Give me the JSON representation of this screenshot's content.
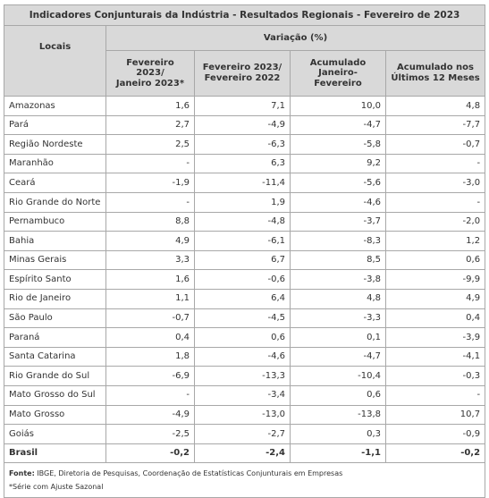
{
  "title": "Indicadores Conjunturais da Indústria  -  Resultados Regionais  -  Fevereiro de 2023",
  "header": {
    "locais": "Locais",
    "variacao": "Variação (%)",
    "columns": [
      [
        "Fevereiro 2023/",
        "Janeiro 2023*"
      ],
      [
        "Fevereiro 2023/",
        "Fevereiro 2022"
      ],
      [
        "Acumulado",
        "Janeiro-Fevereiro"
      ],
      [
        "Acumulado nos",
        "Últimos 12 Meses"
      ]
    ]
  },
  "rows": [
    {
      "local": "Amazonas",
      "v": [
        "1,6",
        "7,1",
        "10,0",
        "4,8"
      ]
    },
    {
      "local": "Pará",
      "v": [
        "2,7",
        "-4,9",
        "-4,7",
        "-7,7"
      ]
    },
    {
      "local": "Região Nordeste",
      "v": [
        "2,5",
        "-6,3",
        "-5,8",
        "-0,7"
      ]
    },
    {
      "local": "Maranhão",
      "v": [
        "-",
        "6,3",
        "9,2",
        "-"
      ]
    },
    {
      "local": "Ceará",
      "v": [
        "-1,9",
        "-11,4",
        "-5,6",
        "-3,0"
      ]
    },
    {
      "local": "Rio Grande do Norte",
      "v": [
        "-",
        "1,9",
        "-4,6",
        "-"
      ]
    },
    {
      "local": "Pernambuco",
      "v": [
        "8,8",
        "-4,8",
        "-3,7",
        "-2,0"
      ]
    },
    {
      "local": "Bahia",
      "v": [
        "4,9",
        "-6,1",
        "-8,3",
        "1,2"
      ]
    },
    {
      "local": "Minas Gerais",
      "v": [
        "3,3",
        "6,7",
        "8,5",
        "0,6"
      ]
    },
    {
      "local": "Espírito Santo",
      "v": [
        "1,6",
        "-0,6",
        "-3,8",
        "-9,9"
      ]
    },
    {
      "local": "Rio de Janeiro",
      "v": [
        "1,1",
        "6,4",
        "4,8",
        "4,9"
      ]
    },
    {
      "local": "São Paulo",
      "v": [
        "-0,7",
        "-4,5",
        "-3,3",
        "0,4"
      ]
    },
    {
      "local": "Paraná",
      "v": [
        "0,4",
        "0,6",
        "0,1",
        "-3,9"
      ]
    },
    {
      "local": "Santa Catarina",
      "v": [
        "1,8",
        "-4,6",
        "-4,7",
        "-4,1"
      ]
    },
    {
      "local": "Rio Grande do Sul",
      "v": [
        "-6,9",
        "-13,3",
        "-10,4",
        "-0,3"
      ]
    },
    {
      "local": "Mato Grosso do Sul",
      "v": [
        "-",
        "-3,4",
        "0,6",
        "-"
      ]
    },
    {
      "local": "Mato Grosso",
      "v": [
        "-4,9",
        "-13,0",
        "-13,8",
        "10,7"
      ]
    },
    {
      "local": "Goiás",
      "v": [
        "-2,5",
        "-2,7",
        "0,3",
        "-0,9"
      ]
    },
    {
      "local": "Brasil",
      "v": [
        "-0,2",
        "-2,4",
        "-1,1",
        "-0,2"
      ],
      "total": true
    }
  ],
  "footer": {
    "fonte_label": "Fonte:",
    "fonte_text": " IBGE, Diretoria de Pesquisas, Coordenação de Estatísticas Conjunturais em Empresas",
    "nota": "*Série com Ajuste Sazonal"
  }
}
